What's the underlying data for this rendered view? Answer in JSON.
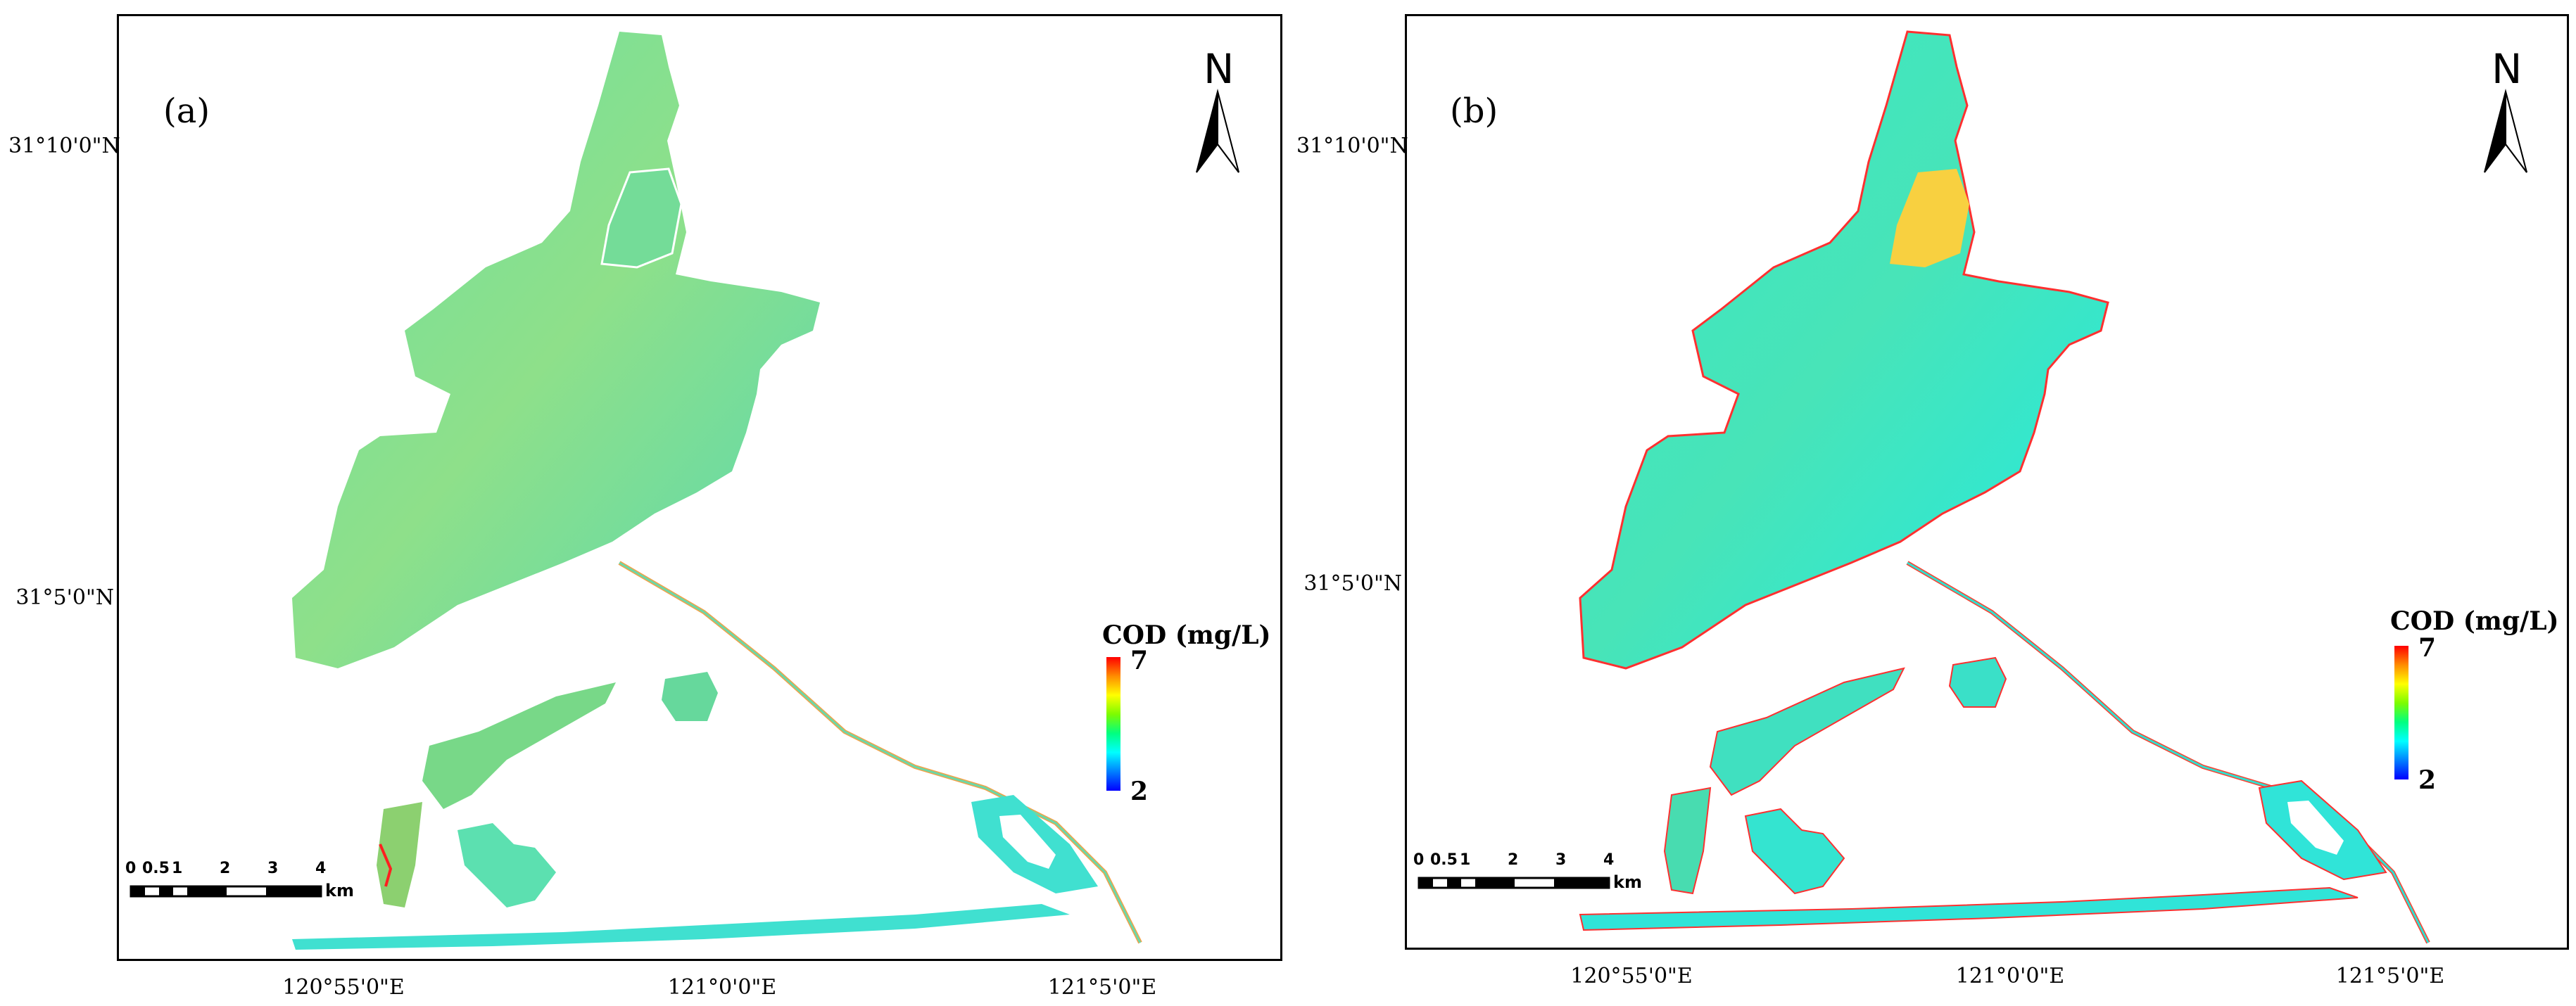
{
  "panels": [
    {
      "label": "(a)",
      "latitude_labels": [
        "31°10'0\"N",
        "31°5'0\"N"
      ],
      "longitude_labels": [
        "120°55'0\"E",
        "121°0'0\"E",
        "121°5'0\"E"
      ],
      "north_arrow_label": "N",
      "legend": {
        "title": "COD (mg/L)",
        "max": "7",
        "min": "2",
        "colors": [
          "#ff0000",
          "#ffff00",
          "#00ff80",
          "#00ffff",
          "#0000ff"
        ]
      },
      "scale_bar": {
        "ticks": [
          "0",
          "0.5",
          "1",
          "2",
          "3",
          "4"
        ],
        "unit": "km"
      },
      "water_color": "#5ed89c"
    },
    {
      "label": "(b)",
      "latitude_labels": [
        "31°10'0\"N",
        "31°5'0\"N"
      ],
      "longitude_labels": [
        "120°55'0\"E",
        "121°0'0\"E",
        "121°5'0\"E"
      ],
      "north_arrow_label": "N",
      "legend": {
        "title": "COD (mg/L)",
        "max": "7",
        "min": "2",
        "colors": [
          "#ff0000",
          "#ffff00",
          "#00ff80",
          "#00ffff",
          "#0000ff"
        ]
      },
      "scale_bar": {
        "ticks": [
          "0",
          "0.5",
          "1",
          "2",
          "3",
          "4"
        ],
        "unit": "km"
      },
      "water_color": "#2ce8d6"
    }
  ]
}
